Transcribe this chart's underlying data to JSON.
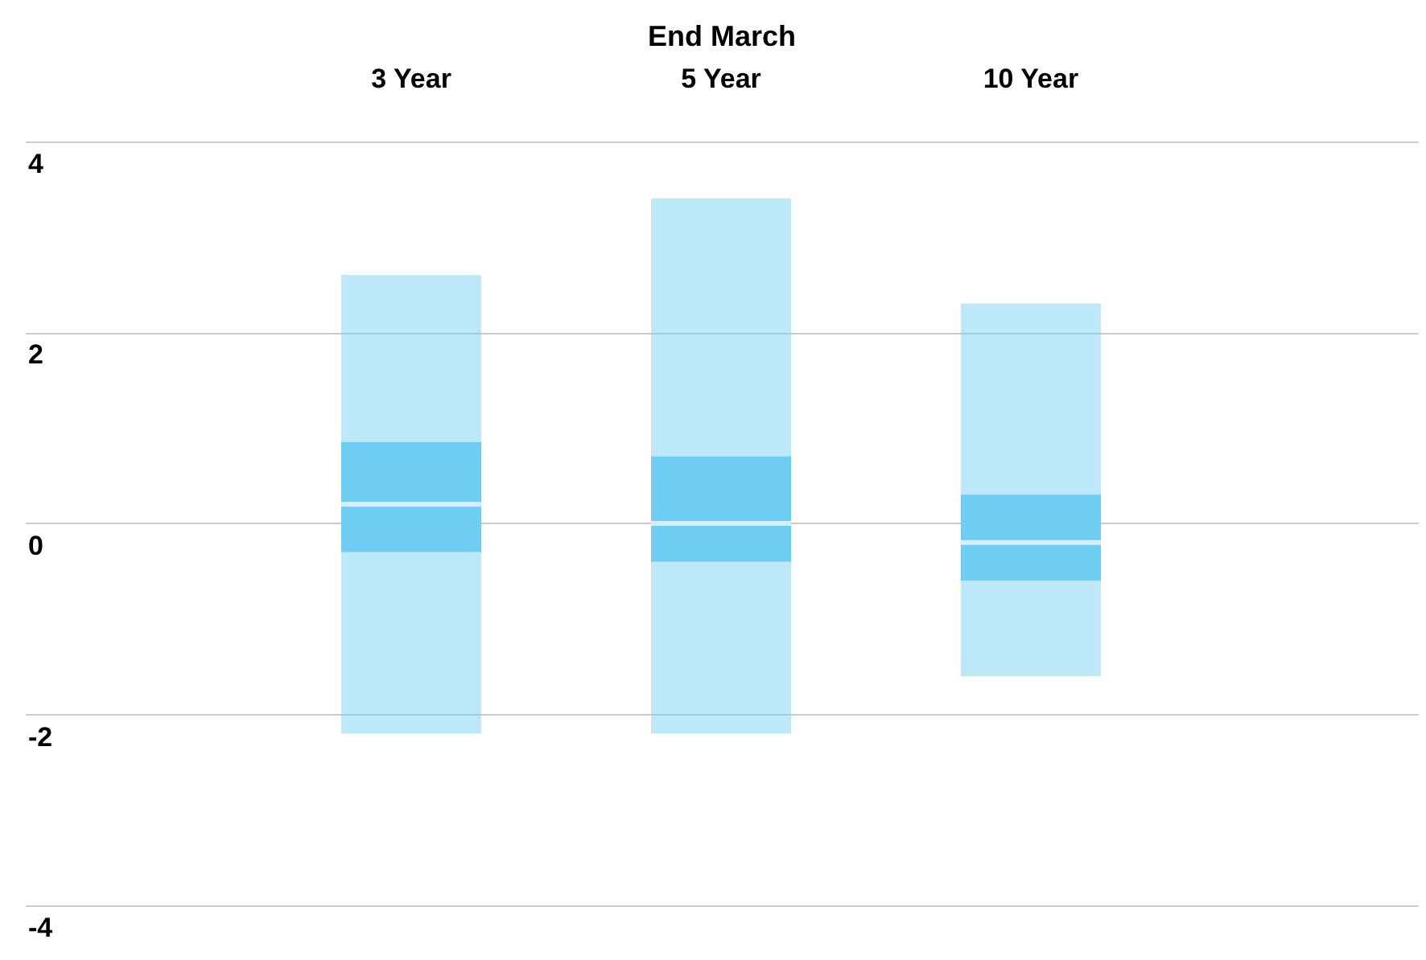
{
  "chart_data": {
    "type": "box",
    "xlabel": "End March",
    "categories": [
      "3 Year",
      "5 Year",
      "10 Year"
    ],
    "series": [
      {
        "color": "#6dcdf3",
        "boxes": [
          {
            "low": -2.2,
            "q1": -0.3,
            "median": 0.2,
            "q3": 0.85,
            "high": 2.6
          },
          {
            "low": -2.2,
            "q1": -0.4,
            "median": 0,
            "q3": 0.7,
            "high": 3.4
          },
          {
            "low": -1.6,
            "q1": -0.6,
            "median": -0.2,
            "q3": 0.3,
            "high": 2.3
          }
        ]
      }
    ],
    "ylim": [
      -4.3,
      4.4
    ],
    "yticks": [
      -4,
      -2,
      0,
      2,
      4
    ],
    "grid": "y"
  }
}
